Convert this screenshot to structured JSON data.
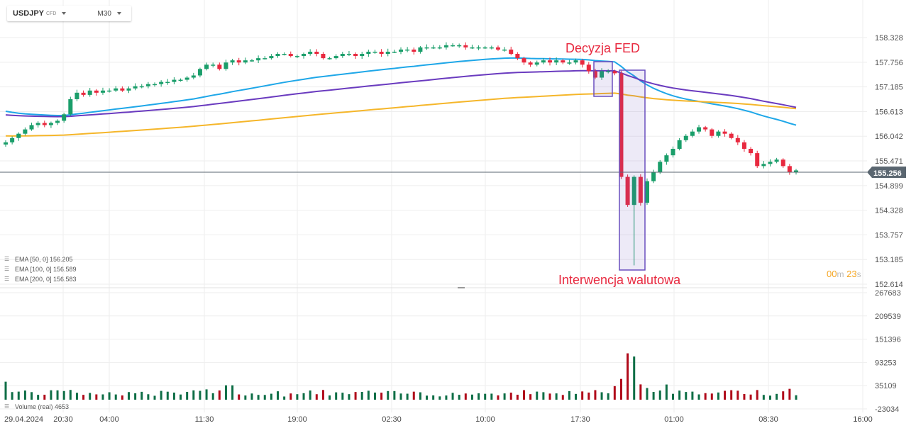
{
  "toolbar": {
    "symbol": "USDJPY",
    "symbol_type": "CFD",
    "timeframe": "M30"
  },
  "price_axis": [
    "158.328",
    "157.756",
    "157.185",
    "156.613",
    "156.042",
    "155.471",
    "154.899",
    "154.328",
    "153.757",
    "153.185",
    "152.614"
  ],
  "current_price": "155.256",
  "volume_axis": [
    "267683",
    "209539",
    "151396",
    "93253",
    "35109",
    "-23034"
  ],
  "time_axis": [
    "29.04.2024",
    "20:30",
    "04:00",
    "11:30",
    "19:00",
    "02:30",
    "10:00",
    "17:30",
    "01:00",
    "08:30",
    "16:00"
  ],
  "indicators": [
    {
      "label": "EMA  [50,  0]  156.205",
      "color": "#1ea7e8"
    },
    {
      "label": "EMA  [100,  0]  156.589",
      "color": "#6a3bbf"
    },
    {
      "label": "EMA  [200,  0]  156.583",
      "color": "#f5b62a"
    }
  ],
  "volume_label": "Volume  (real)  4653",
  "annotations": {
    "fed": "Decyzja FED",
    "intervention": "Interwencja walutowa"
  },
  "countdown": {
    "min": "00",
    "min_unit": "m",
    "sec": "23",
    "sec_unit": "s"
  },
  "colors": {
    "up": "#1a9e6a",
    "down": "#e8293f",
    "vol_up": "#0e6e46",
    "vol_down": "#b00a1a",
    "ema50": "#1ea7e8",
    "ema100": "#6a3bbf",
    "ema200": "#f5b62a",
    "annotation_text": "#e8293f",
    "box": "#6a4fbf"
  },
  "chart_data": {
    "type": "candlestick",
    "symbol": "USDJPY",
    "timeframe": "M30",
    "ylim": [
      152.614,
      158.328
    ],
    "volume_ylim": [
      -23034,
      267683
    ],
    "close": [
      155.9,
      156.0,
      156.1,
      156.2,
      156.3,
      156.35,
      156.3,
      156.35,
      156.4,
      156.55,
      156.9,
      157.05,
      157.0,
      157.1,
      157.05,
      157.1,
      157.1,
      157.15,
      157.1,
      157.15,
      157.2,
      157.2,
      157.25,
      157.25,
      157.3,
      157.3,
      157.35,
      157.35,
      157.4,
      157.45,
      157.6,
      157.7,
      157.7,
      157.6,
      157.75,
      157.8,
      157.75,
      157.8,
      157.8,
      157.85,
      157.85,
      157.9,
      157.95,
      157.95,
      157.9,
      157.9,
      157.95,
      158.0,
      157.95,
      157.85,
      157.85,
      157.9,
      157.95,
      157.95,
      157.9,
      157.95,
      158.0,
      158.0,
      157.95,
      158.0,
      158.0,
      158.05,
      158.05,
      158.0,
      158.1,
      158.1,
      158.1,
      158.1,
      158.15,
      158.15,
      158.15,
      158.1,
      158.1,
      158.1,
      158.1,
      158.1,
      158.05,
      158.05,
      157.95,
      157.85,
      157.75,
      157.7,
      157.75,
      157.8,
      157.75,
      157.8,
      157.75,
      157.75,
      157.8,
      157.7,
      157.55,
      157.4,
      157.55,
      157.55,
      157.5,
      155.1,
      154.45,
      155.1,
      154.5,
      155.0,
      155.2,
      155.45,
      155.6,
      155.75,
      155.95,
      156.05,
      156.15,
      156.25,
      156.2,
      156.05,
      156.15,
      156.1,
      156.0,
      155.9,
      155.75,
      155.65,
      155.35,
      155.4,
      155.45,
      155.5,
      155.35,
      155.2,
      155.25
    ]
  }
}
